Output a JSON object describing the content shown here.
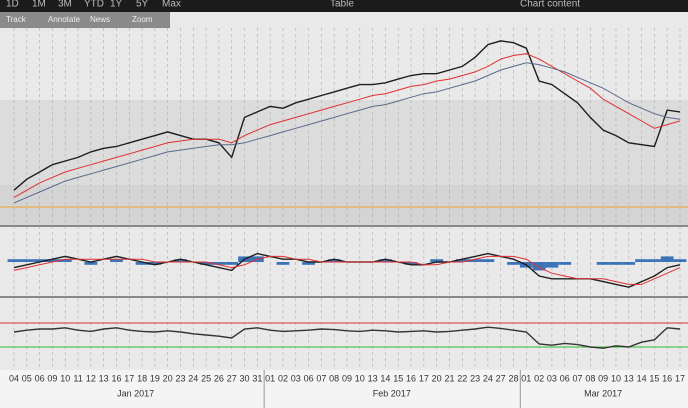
{
  "toolbar": {
    "ranges": [
      "1D",
      "1M",
      "3M",
      "YTD",
      "1Y",
      "5Y",
      "Max"
    ],
    "table": "Table",
    "content": "Chart content",
    "tools": [
      "Track",
      "Annotate",
      "News",
      "Zoom"
    ]
  },
  "chart_data": [
    {
      "type": "line",
      "categories": [
        "04",
        "05",
        "06",
        "09",
        "10",
        "11",
        "12",
        "13",
        "16",
        "17",
        "18",
        "19",
        "20",
        "23",
        "24",
        "25",
        "26",
        "27",
        "30",
        "31",
        "01",
        "02",
        "03",
        "06",
        "07",
        "08",
        "09",
        "10",
        "13",
        "14",
        "15",
        "16",
        "17",
        "20",
        "21",
        "22",
        "23",
        "24",
        "27",
        "28",
        "01",
        "02",
        "03",
        "06",
        "07",
        "08",
        "09",
        "10",
        "13",
        "14",
        "15",
        "16",
        "17"
      ],
      "groups": [
        "Jan 2017",
        "Feb 2017",
        "Mar 2017"
      ],
      "ylim": [
        0,
        100
      ],
      "grid": true,
      "series": [
        {
          "color": "#1e1e1e",
          "values": [
            12,
            18,
            22,
            26,
            28,
            30,
            33,
            35,
            36,
            38,
            40,
            42,
            44,
            42,
            40,
            40,
            38,
            30,
            52,
            55,
            58,
            57,
            60,
            62,
            64,
            66,
            68,
            70,
            70,
            71,
            73,
            75,
            76,
            76,
            78,
            80,
            85,
            92,
            94,
            93,
            90,
            72,
            70,
            65,
            60,
            52,
            45,
            42,
            38,
            37,
            36,
            56,
            55
          ]
        },
        {
          "color": "#e03030",
          "values": [
            8,
            12,
            16,
            19,
            22,
            24,
            26,
            28,
            30,
            32,
            34,
            36,
            38,
            39,
            40,
            40,
            40,
            38,
            42,
            45,
            48,
            50,
            52,
            54,
            56,
            58,
            60,
            62,
            64,
            65,
            67,
            69,
            70,
            72,
            73,
            75,
            77,
            80,
            84,
            86,
            87,
            84,
            80,
            76,
            72,
            68,
            62,
            58,
            54,
            50,
            46,
            48,
            50
          ]
        },
        {
          "color": "#5a6a8a",
          "values": [
            5,
            8,
            11,
            14,
            17,
            19,
            21,
            23,
            25,
            27,
            29,
            31,
            33,
            34,
            35,
            36,
            37,
            37,
            38,
            40,
            42,
            44,
            46,
            48,
            50,
            52,
            54,
            56,
            58,
            59,
            61,
            63,
            65,
            66,
            68,
            70,
            72,
            75,
            78,
            80,
            82,
            81,
            79,
            77,
            74,
            71,
            68,
            64,
            60,
            57,
            54,
            52,
            51
          ]
        }
      ]
    },
    {
      "type": "macd",
      "ylim": [
        -10,
        10
      ],
      "histogram": {
        "color": "#1f5fb0",
        "values": [
          1,
          1,
          1,
          1,
          1,
          0,
          -1,
          0,
          1,
          0,
          -1,
          -1,
          0,
          1,
          0,
          -1,
          -1,
          -1,
          2,
          2,
          0,
          -1,
          0,
          -1,
          0,
          1,
          0,
          0,
          0,
          1,
          0,
          -1,
          0,
          1,
          0,
          1,
          1,
          1,
          0,
          -1,
          -2,
          -3,
          -2,
          -1,
          0,
          0,
          -1,
          -1,
          -1,
          1,
          1,
          2,
          1
        ]
      },
      "series": [
        {
          "color": "#1e1e1e",
          "values": [
            -2,
            -1,
            0,
            1,
            2,
            1,
            0,
            1,
            2,
            1,
            0,
            -1,
            0,
            1,
            0,
            -1,
            -2,
            -3,
            1,
            3,
            2,
            1,
            1,
            0,
            0,
            1,
            0,
            0,
            0,
            1,
            0,
            -1,
            -1,
            0,
            0,
            1,
            2,
            3,
            2,
            1,
            -1,
            -5,
            -6,
            -6,
            -6,
            -6,
            -7,
            -8,
            -9,
            -7,
            -5,
            -2,
            -1
          ]
        },
        {
          "color": "#e03030",
          "values": [
            -3,
            -2,
            -1,
            0,
            1,
            1,
            1,
            1,
            1,
            1,
            1,
            0,
            0,
            0,
            0,
            0,
            -1,
            -2,
            -1,
            1,
            2,
            2,
            1,
            1,
            0,
            0,
            0,
            0,
            0,
            0,
            0,
            0,
            -1,
            -1,
            0,
            0,
            1,
            2,
            2,
            2,
            1,
            -2,
            -4,
            -5,
            -6,
            -6,
            -6,
            -7,
            -8,
            -8,
            -6,
            -4,
            -2
          ]
        }
      ]
    },
    {
      "type": "line",
      "ylim": [
        0,
        100
      ],
      "reference_lines": [
        {
          "value": 70,
          "color": "#e03030"
        },
        {
          "value": 30,
          "color": "#30c030"
        }
      ],
      "series": [
        {
          "color": "#333333",
          "values": [
            55,
            58,
            60,
            60,
            62,
            58,
            56,
            60,
            62,
            58,
            56,
            55,
            57,
            55,
            52,
            50,
            48,
            45,
            60,
            62,
            58,
            56,
            57,
            58,
            60,
            59,
            57,
            56,
            58,
            57,
            55,
            56,
            57,
            55,
            56,
            58,
            60,
            63,
            61,
            58,
            55,
            35,
            33,
            36,
            34,
            30,
            28,
            32,
            30,
            38,
            42,
            62,
            60
          ]
        }
      ]
    }
  ]
}
